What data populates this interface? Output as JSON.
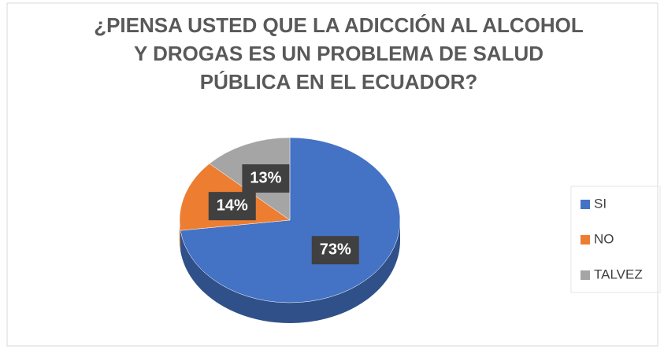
{
  "chart_data": {
    "type": "pie",
    "title": "¿PIENSA USTED QUE LA ADICCIÓN AL ALCOHOL Y DROGAS ES UN PROBLEMA DE SALUD PÚBLICA EN EL ECUADOR?",
    "categories": [
      "SI",
      "NO",
      "TALVEZ"
    ],
    "values": [
      73,
      14,
      13
    ],
    "value_labels": [
      "73%",
      "14%",
      "13%"
    ],
    "colors": [
      "#4472c4",
      "#ed7d31",
      "#a5a5a5"
    ],
    "legend": "right"
  }
}
